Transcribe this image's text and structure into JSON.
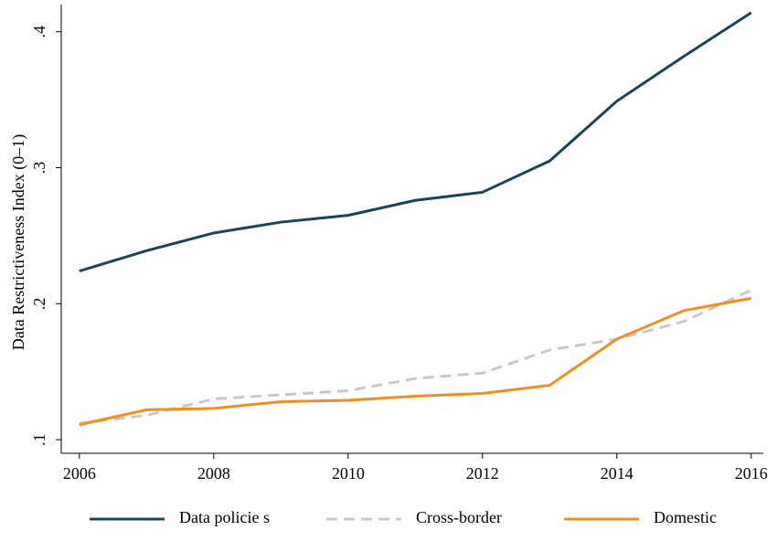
{
  "chart_data": {
    "type": "line",
    "y_label": "Data Restrictiveness Index (0–1)",
    "x": [
      2006,
      2007,
      2008,
      2009,
      2010,
      2011,
      2012,
      2013,
      2014,
      2015,
      2016
    ],
    "xlim": [
      2005.73,
      2016.18
    ],
    "xticks": [
      2006,
      2008,
      2010,
      2012,
      2014,
      2016
    ],
    "ylim": [
      0.09,
      0.42
    ],
    "yticks": [
      {
        "value": 0.1,
        "label": ".1"
      },
      {
        "value": 0.2,
        "label": ".2"
      },
      {
        "value": 0.3,
        "label": ".3"
      },
      {
        "value": 0.4,
        "label": ".4"
      }
    ],
    "legend": "bottom",
    "series": [
      {
        "name": "Data policie s",
        "color": "#1a4459",
        "style": "solid",
        "values": [
          0.224,
          0.239,
          0.252,
          0.26,
          0.265,
          0.276,
          0.282,
          0.305,
          0.349,
          0.382,
          0.414
        ]
      },
      {
        "name": "Cross-border",
        "color": "#c8c8c8",
        "style": "dashed",
        "values": [
          0.112,
          0.118,
          0.13,
          0.133,
          0.136,
          0.145,
          0.149,
          0.166,
          0.174,
          0.187,
          0.21
        ]
      },
      {
        "name": "Domestic",
        "color": "#f28e1e",
        "style": "solid",
        "values": [
          0.111,
          0.122,
          0.123,
          0.128,
          0.129,
          0.132,
          0.134,
          0.14,
          0.174,
          0.195,
          0.204
        ]
      }
    ]
  }
}
